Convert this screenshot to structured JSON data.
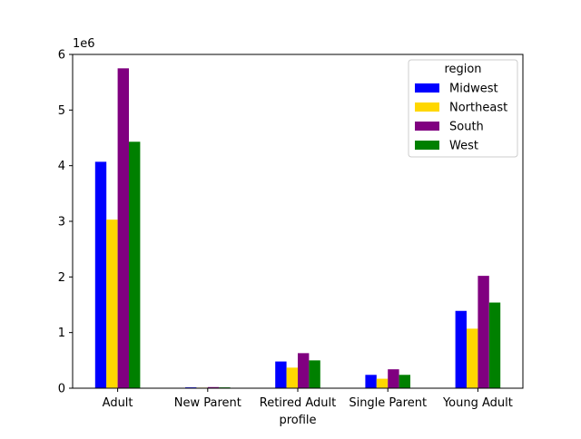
{
  "chart_data": {
    "type": "bar",
    "categories": [
      "Adult",
      "New Parent",
      "Retired Adult",
      "Single Parent",
      "Young Adult"
    ],
    "series": [
      {
        "name": "Midwest",
        "color": "#0000ff",
        "values": [
          4070000,
          15000,
          480000,
          240000,
          1390000
        ]
      },
      {
        "name": "Northeast",
        "color": "#ffd700",
        "values": [
          3030000,
          10000,
          370000,
          170000,
          1070000
        ]
      },
      {
        "name": "South",
        "color": "#800080",
        "values": [
          5750000,
          20000,
          630000,
          340000,
          2020000
        ]
      },
      {
        "name": "West",
        "color": "#008000",
        "values": [
          4430000,
          15000,
          500000,
          240000,
          1540000
        ]
      }
    ],
    "xlabel": "profile",
    "ylabel": "",
    "ylim": [
      0,
      6000000
    ],
    "yticks": [
      0,
      1000000,
      2000000,
      3000000,
      4000000,
      5000000,
      6000000
    ],
    "ytick_labels": [
      "0",
      "1",
      "2",
      "3",
      "4",
      "5",
      "6"
    ],
    "offset_label": "1e6",
    "legend": {
      "title": "region",
      "placement": "top-right"
    },
    "grid": false
  }
}
